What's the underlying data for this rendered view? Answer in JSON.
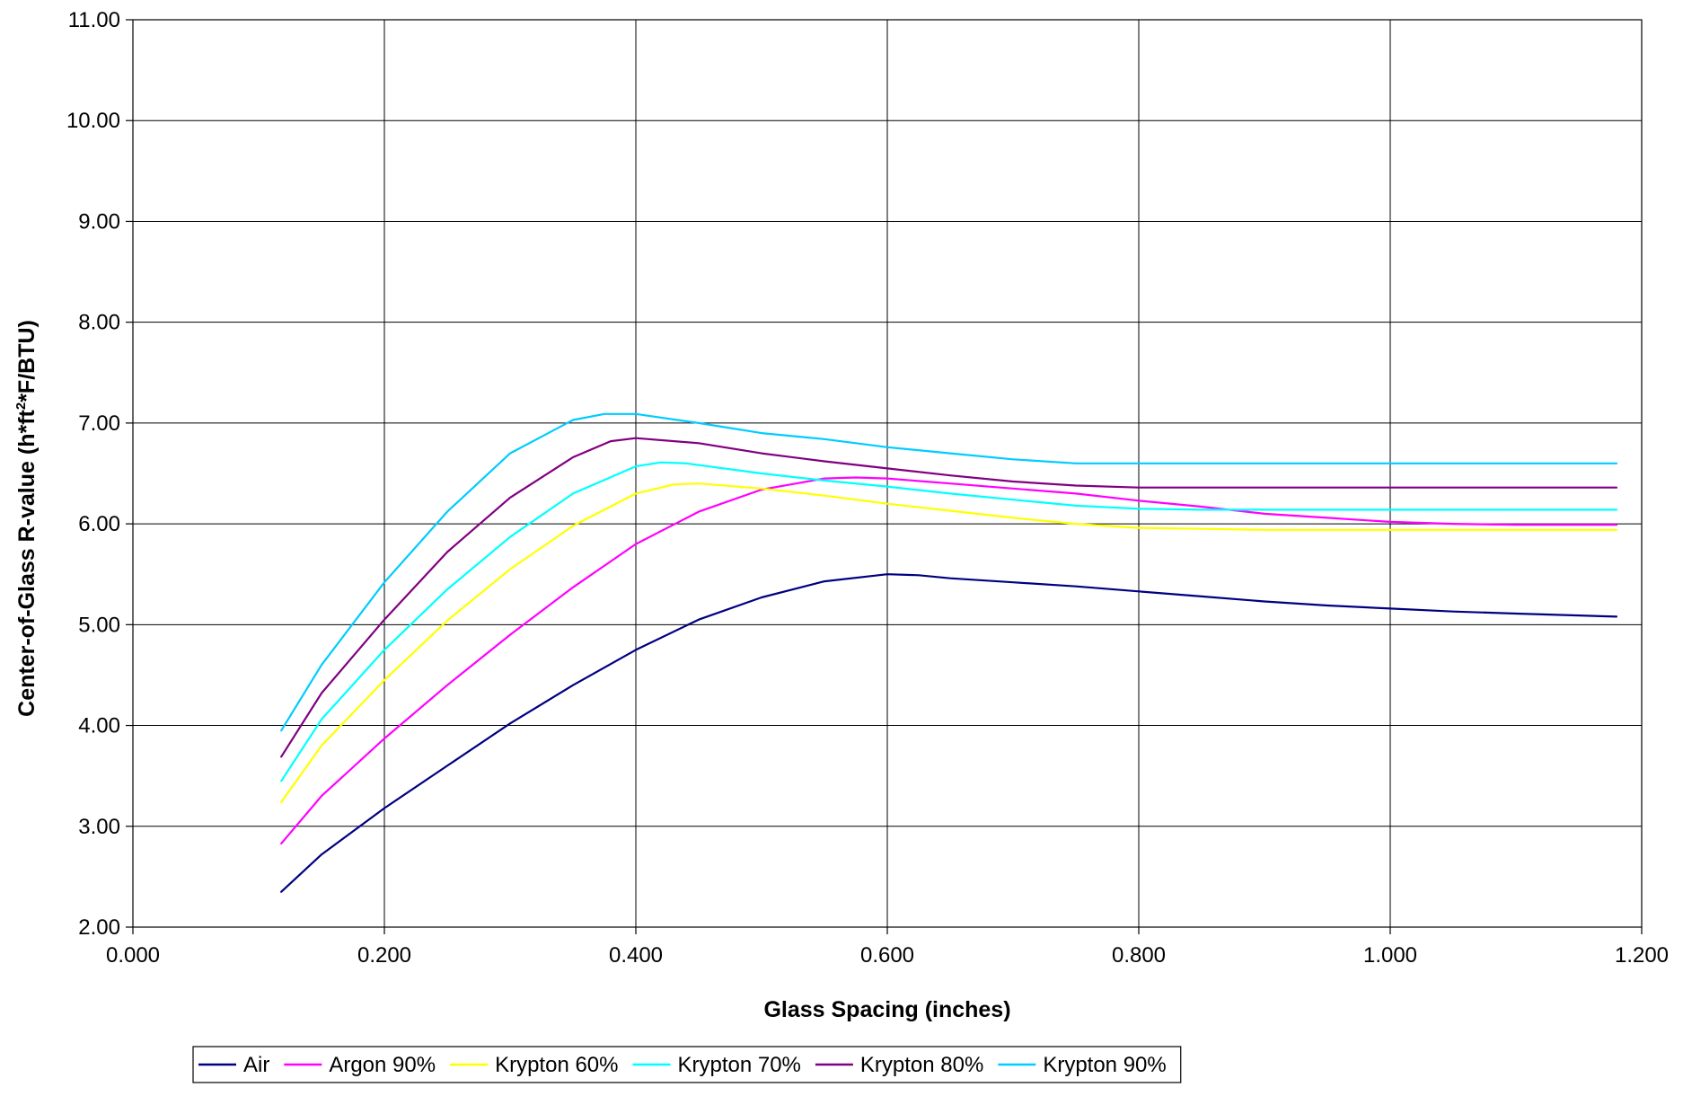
{
  "chart_data": {
    "type": "line",
    "title": "",
    "xlabel": "Glass Spacing (inches)",
    "ylabel": {
      "prefix": "Center-of-Glass R-value (h*ft",
      "superscript": "2",
      "suffix": "*F/BTU)"
    },
    "xlim": [
      0.0,
      1.2
    ],
    "ylim": [
      2.0,
      11.0
    ],
    "x_ticks": [
      "0.000",
      "0.200",
      "0.400",
      "0.600",
      "0.800",
      "1.000",
      "1.200"
    ],
    "y_ticks": [
      "2.00",
      "3.00",
      "4.00",
      "5.00",
      "6.00",
      "7.00",
      "8.00",
      "9.00",
      "10.00",
      "11.00"
    ],
    "grid": true,
    "legend_position": "bottom",
    "series": [
      {
        "name": "Air",
        "color": "#000080",
        "points": [
          [
            0.118,
            2.35
          ],
          [
            0.15,
            2.72
          ],
          [
            0.2,
            3.18
          ],
          [
            0.25,
            3.6
          ],
          [
            0.3,
            4.02
          ],
          [
            0.35,
            4.4
          ],
          [
            0.4,
            4.75
          ],
          [
            0.45,
            5.05
          ],
          [
            0.5,
            5.27
          ],
          [
            0.55,
            5.43
          ],
          [
            0.6,
            5.5
          ],
          [
            0.625,
            5.49
          ],
          [
            0.65,
            5.46
          ],
          [
            0.7,
            5.42
          ],
          [
            0.75,
            5.38
          ],
          [
            0.8,
            5.33
          ],
          [
            0.85,
            5.28
          ],
          [
            0.9,
            5.23
          ],
          [
            0.95,
            5.19
          ],
          [
            1.0,
            5.16
          ],
          [
            1.05,
            5.13
          ],
          [
            1.1,
            5.11
          ],
          [
            1.18,
            5.08
          ]
        ]
      },
      {
        "name": "Argon 90%",
        "color": "#FF00FF",
        "points": [
          [
            0.118,
            2.83
          ],
          [
            0.15,
            3.3
          ],
          [
            0.2,
            3.87
          ],
          [
            0.25,
            4.4
          ],
          [
            0.3,
            4.9
          ],
          [
            0.35,
            5.37
          ],
          [
            0.4,
            5.8
          ],
          [
            0.45,
            6.12
          ],
          [
            0.5,
            6.34
          ],
          [
            0.55,
            6.45
          ],
          [
            0.575,
            6.46
          ],
          [
            0.6,
            6.45
          ],
          [
            0.65,
            6.4
          ],
          [
            0.7,
            6.35
          ],
          [
            0.75,
            6.3
          ],
          [
            0.8,
            6.23
          ],
          [
            0.85,
            6.17
          ],
          [
            0.9,
            6.1
          ],
          [
            0.95,
            6.06
          ],
          [
            1.0,
            6.02
          ],
          [
            1.05,
            6.0
          ],
          [
            1.1,
            5.99
          ],
          [
            1.18,
            5.99
          ]
        ]
      },
      {
        "name": "Krypton 60%",
        "color": "#FFFF00",
        "points": [
          [
            0.118,
            3.24
          ],
          [
            0.15,
            3.8
          ],
          [
            0.2,
            4.45
          ],
          [
            0.25,
            5.04
          ],
          [
            0.3,
            5.55
          ],
          [
            0.35,
            5.98
          ],
          [
            0.4,
            6.3
          ],
          [
            0.43,
            6.39
          ],
          [
            0.45,
            6.4
          ],
          [
            0.5,
            6.35
          ],
          [
            0.55,
            6.28
          ],
          [
            0.6,
            6.2
          ],
          [
            0.65,
            6.13
          ],
          [
            0.7,
            6.06
          ],
          [
            0.75,
            6.0
          ],
          [
            0.8,
            5.96
          ],
          [
            0.85,
            5.95
          ],
          [
            0.9,
            5.94
          ],
          [
            1.0,
            5.94
          ],
          [
            1.1,
            5.94
          ],
          [
            1.18,
            5.94
          ]
        ]
      },
      {
        "name": "Krypton 70%",
        "color": "#00FFFF",
        "points": [
          [
            0.118,
            3.45
          ],
          [
            0.15,
            4.06
          ],
          [
            0.2,
            4.75
          ],
          [
            0.25,
            5.35
          ],
          [
            0.3,
            5.87
          ],
          [
            0.35,
            6.3
          ],
          [
            0.4,
            6.57
          ],
          [
            0.42,
            6.61
          ],
          [
            0.44,
            6.6
          ],
          [
            0.5,
            6.5
          ],
          [
            0.55,
            6.43
          ],
          [
            0.6,
            6.37
          ],
          [
            0.65,
            6.3
          ],
          [
            0.7,
            6.24
          ],
          [
            0.75,
            6.18
          ],
          [
            0.8,
            6.15
          ],
          [
            0.85,
            6.14
          ],
          [
            0.9,
            6.14
          ],
          [
            1.0,
            6.14
          ],
          [
            1.1,
            6.14
          ],
          [
            1.18,
            6.14
          ]
        ]
      },
      {
        "name": "Krypton 80%",
        "color": "#800080",
        "points": [
          [
            0.118,
            3.69
          ],
          [
            0.15,
            4.32
          ],
          [
            0.2,
            5.05
          ],
          [
            0.25,
            5.72
          ],
          [
            0.3,
            6.26
          ],
          [
            0.35,
            6.66
          ],
          [
            0.38,
            6.82
          ],
          [
            0.4,
            6.85
          ],
          [
            0.45,
            6.8
          ],
          [
            0.5,
            6.7
          ],
          [
            0.55,
            6.62
          ],
          [
            0.6,
            6.55
          ],
          [
            0.65,
            6.48
          ],
          [
            0.7,
            6.42
          ],
          [
            0.75,
            6.38
          ],
          [
            0.8,
            6.36
          ],
          [
            0.85,
            6.36
          ],
          [
            0.9,
            6.36
          ],
          [
            1.0,
            6.36
          ],
          [
            1.1,
            6.36
          ],
          [
            1.18,
            6.36
          ]
        ]
      },
      {
        "name": "Krypton 90%",
        "color": "#00CCFF",
        "points": [
          [
            0.118,
            3.95
          ],
          [
            0.15,
            4.6
          ],
          [
            0.2,
            5.42
          ],
          [
            0.25,
            6.12
          ],
          [
            0.3,
            6.7
          ],
          [
            0.35,
            7.03
          ],
          [
            0.375,
            7.09
          ],
          [
            0.4,
            7.09
          ],
          [
            0.45,
            7.0
          ],
          [
            0.5,
            6.9
          ],
          [
            0.55,
            6.84
          ],
          [
            0.6,
            6.76
          ],
          [
            0.65,
            6.7
          ],
          [
            0.7,
            6.64
          ],
          [
            0.75,
            6.6
          ],
          [
            0.8,
            6.6
          ],
          [
            0.9,
            6.6
          ],
          [
            1.0,
            6.6
          ],
          [
            1.1,
            6.6
          ],
          [
            1.18,
            6.6
          ]
        ]
      }
    ]
  }
}
